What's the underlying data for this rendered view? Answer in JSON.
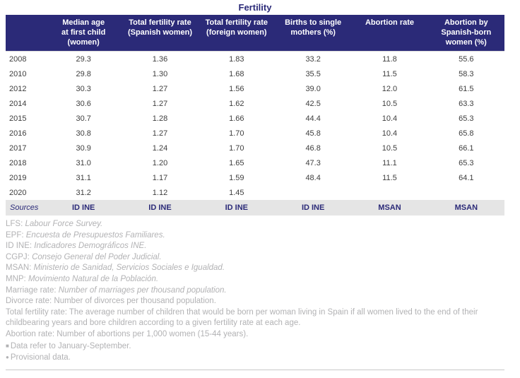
{
  "title": "Fertility",
  "colors": {
    "header_bg": "#2b2a78",
    "header_text": "#ffffff",
    "row_text": "#3e3e3e",
    "sources_bg": "#e5e5e5",
    "footnote_text": "#b2b2b4",
    "rule": "#c8c8c8"
  },
  "table": {
    "header_lines": [
      "",
      "Median age\nat first child\n(women)",
      "Total fertility rate\n(Spanish women)",
      "Total fertility rate\n(foreign women)",
      "Births to single\nmothers (%)",
      "Abortion rate",
      "Abortion by\nSpanish-born\nwomen (%)"
    ],
    "rows": [
      {
        "year": "2008",
        "values": [
          "29.3",
          "1.36",
          "1.83",
          "33.2",
          "11.8",
          "55.6"
        ]
      },
      {
        "year": "2010",
        "values": [
          "29.8",
          "1.30",
          "1.68",
          "35.5",
          "11.5",
          "58.3"
        ]
      },
      {
        "year": "2012",
        "values": [
          "30.3",
          "1.27",
          "1.56",
          "39.0",
          "12.0",
          "61.5"
        ]
      },
      {
        "year": "2014",
        "values": [
          "30.6",
          "1.27",
          "1.62",
          "42.5",
          "10.5",
          "63.3"
        ]
      },
      {
        "year": "2015",
        "values": [
          "30.7",
          "1.28",
          "1.66",
          "44.4",
          "10.4",
          "65.3"
        ]
      },
      {
        "year": "2016",
        "values": [
          "30.8",
          "1.27",
          "1.70",
          "45.8",
          "10.4",
          "65.8"
        ]
      },
      {
        "year": "2017",
        "values": [
          "30.9",
          "1.24",
          "1.70",
          "46.8",
          "10.5",
          "66.1"
        ]
      },
      {
        "year": "2018",
        "values": [
          "31.0",
          "1.20",
          "1.65",
          "47.3",
          "11.1",
          "65.3"
        ]
      },
      {
        "year": "2019",
        "values": [
          "31.1",
          "1.17",
          "1.59",
          "48.4",
          "11.5",
          "64.1"
        ]
      },
      {
        "year": "2020",
        "values": [
          "31.2",
          "1.12",
          "1.45",
          "",
          "",
          ""
        ]
      }
    ],
    "sources_label": "Sources",
    "sources": [
      "ID INE",
      "ID INE",
      "ID INE",
      "ID INE",
      "MSAN",
      "MSAN"
    ]
  },
  "footnotes": [
    {
      "prefix": "LFS:",
      "text": "Labour Force Survey.",
      "italic": true
    },
    {
      "prefix": "EPF:",
      "text": "Encuesta de Presupuestos Familiares.",
      "italic": true
    },
    {
      "prefix": "ID INE:",
      "text": "Indicadores Demográficos INE.",
      "italic": true
    },
    {
      "prefix": "CGPJ:",
      "text": "Consejo General del Poder Judicial.",
      "italic": true
    },
    {
      "prefix": "MSAN:",
      "text": "Ministerio de Sanidad, Servicios Sociales e Igualdad.",
      "italic": true
    },
    {
      "prefix": "MNP:",
      "text": "Movimiento Natural de la Población.",
      "italic": true
    },
    {
      "prefix": "Marriage rate:",
      "text": "Number of marriages per thousand population.",
      "italic": true
    },
    {
      "prefix": "Divorce rate:",
      "text": "Number of divorces per thousand population.",
      "italic": false
    },
    {
      "prefix": "Total fertility rate:",
      "text": "The average number of children that would be born per woman living in Spain if all women lived to the end of their childbearing years and bore children according to a given fertility rate at each age.",
      "italic": false
    },
    {
      "prefix": "Abortion rate:",
      "text": "Number of abortions per 1,000 women (15-44 years).",
      "italic": false
    },
    {
      "marker": "■",
      "prefix": "",
      "text": "Data refer to January-September.",
      "italic": false
    },
    {
      "marker": "●",
      "prefix": "",
      "text": "Provisional data.",
      "italic": false
    }
  ],
  "chart_data": {
    "type": "table",
    "title": "Fertility",
    "columns": [
      "",
      "Median age at first child (women)",
      "Total fertility rate (Spanish women)",
      "Total fertility rate (foreign women)",
      "Births to single mothers (%)",
      "Abortion rate",
      "Abortion by Spanish-born women (%)"
    ],
    "rows": [
      [
        "2008",
        "29.3",
        "1.36",
        "1.83",
        "33.2",
        "11.8",
        "55.6"
      ],
      [
        "2010",
        "29.8",
        "1.30",
        "1.68",
        "35.5",
        "11.5",
        "58.3"
      ],
      [
        "2012",
        "30.3",
        "1.27",
        "1.56",
        "39.0",
        "12.0",
        "61.5"
      ],
      [
        "2014",
        "30.6",
        "1.27",
        "1.62",
        "42.5",
        "10.5",
        "63.3"
      ],
      [
        "2015",
        "30.7",
        "1.28",
        "1.66",
        "44.4",
        "10.4",
        "65.3"
      ],
      [
        "2016",
        "30.8",
        "1.27",
        "1.70",
        "45.8",
        "10.4",
        "65.8"
      ],
      [
        "2017",
        "30.9",
        "1.24",
        "1.70",
        "46.8",
        "10.5",
        "66.1"
      ],
      [
        "2018",
        "31.0",
        "1.20",
        "1.65",
        "47.3",
        "11.1",
        "65.3"
      ],
      [
        "2019",
        "31.1",
        "1.17",
        "1.59",
        "48.4",
        "11.5",
        "64.1"
      ],
      [
        "2020",
        "31.2",
        "1.12",
        "1.45",
        "",
        "",
        ""
      ]
    ],
    "sources_row": [
      "Sources",
      "ID INE",
      "ID INE",
      "ID INE",
      "ID INE",
      "MSAN",
      "MSAN"
    ]
  }
}
